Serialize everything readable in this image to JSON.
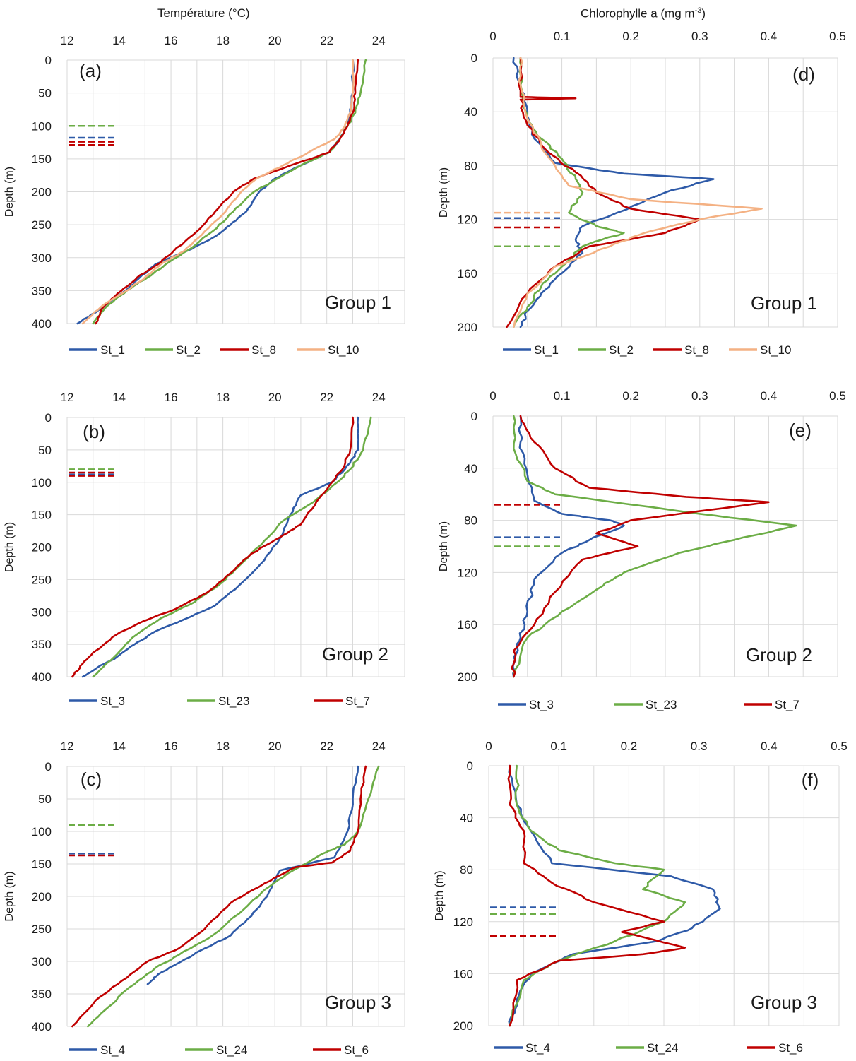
{
  "figure": {
    "temperature_axis_title": "Température (°C)",
    "chlorophyll_axis_title_prefix": "Chlorophylle a (mg m",
    "chlorophyll_axis_title_sup": "-3",
    "chlorophyll_axis_title_suffix": ")",
    "depth_axis_title": "Depth (m)"
  },
  "colors": {
    "blue": "#2e5aa8",
    "green": "#6cad46",
    "red": "#c00000",
    "orange": "#f4b183",
    "grid": "#d9d9d9",
    "axis_text": "#1a1a1a"
  },
  "chart_data": [
    {
      "id": "a",
      "type": "line",
      "panel_label": "(a)",
      "group_label": "Group 1",
      "xlabel": "Température (°C)",
      "ylabel": "Depth (m)",
      "xlim": [
        12,
        25
      ],
      "ylim": [
        400,
        0
      ],
      "y_inverted": true,
      "xticks": [
        12,
        14,
        16,
        18,
        20,
        22,
        24
      ],
      "yticks": [
        0,
        50,
        100,
        150,
        200,
        250,
        300,
        350,
        400
      ],
      "grid": true,
      "legend_position": "bottom",
      "series": [
        {
          "name": "St_1",
          "color": "#2e5aa8",
          "x": [
            23.0,
            23.0,
            22.9,
            22.8,
            22.5,
            22.1,
            21.0,
            20.0,
            19.4,
            18.9,
            18.3,
            17.6,
            16.6,
            15.4,
            14.8,
            14.4,
            13.2,
            12.4
          ],
          "y": [
            0,
            50,
            80,
            100,
            120,
            140,
            160,
            180,
            200,
            230,
            250,
            270,
            290,
            310,
            330,
            345,
            380,
            400
          ]
        },
        {
          "name": "St_2",
          "color": "#6cad46",
          "x": [
            23.5,
            23.3,
            23.1,
            22.8,
            22.5,
            22.1,
            21.0,
            20.1,
            19.2,
            18.4,
            17.6,
            16.6,
            15.8,
            15.1,
            14.3,
            13.5,
            13.0
          ],
          "y": [
            0,
            50,
            80,
            100,
            120,
            140,
            160,
            180,
            200,
            230,
            260,
            290,
            310,
            330,
            350,
            375,
            400
          ]
        },
        {
          "name": "St_8",
          "color": "#c00000",
          "x": [
            23.2,
            23.1,
            23.0,
            22.8,
            22.5,
            22.1,
            20.6,
            19.2,
            18.4,
            17.7,
            17.0,
            16.1,
            15.5,
            14.7,
            14.1,
            13.4,
            13.1
          ],
          "y": [
            0,
            50,
            80,
            100,
            120,
            140,
            160,
            180,
            200,
            230,
            260,
            290,
            310,
            330,
            350,
            375,
            400
          ]
        },
        {
          "name": "St_10",
          "color": "#f4b183",
          "x": [
            23.0,
            23.0,
            22.9,
            22.7,
            22.3,
            21.3,
            20.3,
            19.3,
            18.7,
            18.1,
            17.3,
            16.5,
            15.6,
            15.0,
            14.3,
            13.3,
            12.6
          ],
          "y": [
            0,
            50,
            80,
            100,
            120,
            140,
            160,
            180,
            200,
            230,
            260,
            290,
            310,
            330,
            350,
            375,
            400
          ]
        }
      ],
      "markers": [
        {
          "series": "St_2",
          "value": 100
        },
        {
          "series": "St_1",
          "value": 118
        },
        {
          "series": "St_8",
          "value": 124
        },
        {
          "series": "St_8",
          "value": 129
        }
      ]
    },
    {
      "id": "d",
      "type": "line",
      "panel_label": "(d)",
      "group_label": "Group 1",
      "xlabel": "Chlorophylle a (mg m-3)",
      "ylabel": "Depth (m)",
      "xlim": [
        0,
        0.5
      ],
      "ylim": [
        200,
        0
      ],
      "y_inverted": true,
      "xticks": [
        0,
        0.1,
        0.2,
        0.3,
        0.4,
        0.5
      ],
      "yticks": [
        0,
        40,
        80,
        120,
        160,
        200
      ],
      "grid": true,
      "legend_position": "bottom",
      "series": [
        {
          "name": "St_1",
          "color": "#2e5aa8",
          "x": [
            0.03,
            0.04,
            0.05,
            0.06,
            0.09,
            0.19,
            0.32,
            0.25,
            0.18,
            0.13,
            0.12,
            0.13,
            0.1,
            0.07,
            0.05,
            0.04
          ],
          "y": [
            0,
            20,
            40,
            60,
            78,
            86,
            90,
            100,
            115,
            125,
            135,
            145,
            160,
            175,
            188,
            200
          ]
        },
        {
          "name": "St_2",
          "color": "#6cad46",
          "x": [
            0.04,
            0.04,
            0.05,
            0.07,
            0.1,
            0.12,
            0.13,
            0.11,
            0.15,
            0.19,
            0.13,
            0.1,
            0.07,
            0.05,
            0.03
          ],
          "y": [
            0,
            20,
            45,
            60,
            75,
            90,
            100,
            115,
            125,
            130,
            140,
            155,
            170,
            185,
            200
          ]
        },
        {
          "name": "St_8",
          "color": "#c00000",
          "x": [
            0.04,
            0.04,
            0.12,
            0.04,
            0.05,
            0.08,
            0.12,
            0.15,
            0.2,
            0.3,
            0.25,
            0.14,
            0.09,
            0.05,
            0.02
          ],
          "y": [
            0,
            29,
            30,
            31,
            50,
            70,
            85,
            100,
            112,
            120,
            130,
            140,
            155,
            175,
            200
          ]
        },
        {
          "name": "St_10",
          "color": "#f4b183",
          "x": [
            0.04,
            0.04,
            0.05,
            0.07,
            0.09,
            0.11,
            0.2,
            0.39,
            0.3,
            0.22,
            0.17,
            0.09,
            0.05,
            0.03
          ],
          "y": [
            0,
            20,
            45,
            65,
            80,
            95,
            105,
            112,
            120,
            130,
            140,
            155,
            175,
            200
          ]
        }
      ],
      "markers": [
        {
          "series": "St_10",
          "value": 115
        },
        {
          "series": "St_1",
          "value": 119
        },
        {
          "series": "St_8",
          "value": 126
        },
        {
          "series": "St_2",
          "value": 140
        }
      ]
    },
    {
      "id": "b",
      "type": "line",
      "panel_label": "(b)",
      "group_label": "Group 2",
      "xlabel": "Température (°C)",
      "ylabel": "Depth (m)",
      "xlim": [
        12,
        25
      ],
      "ylim": [
        400,
        0
      ],
      "y_inverted": true,
      "xticks": [
        12,
        14,
        16,
        18,
        20,
        22,
        24
      ],
      "yticks": [
        0,
        50,
        100,
        150,
        200,
        250,
        300,
        350,
        400
      ],
      "grid": true,
      "legend_position": "bottom",
      "series": [
        {
          "name": "St_3",
          "color": "#2e5aa8",
          "x": [
            23.2,
            23.2,
            22.9,
            22.2,
            21.0,
            20.6,
            20.3,
            19.6,
            18.6,
            17.7,
            16.6,
            15.4,
            14.6,
            13.9,
            13.2,
            12.6
          ],
          "y": [
            0,
            50,
            70,
            100,
            120,
            150,
            180,
            220,
            260,
            290,
            310,
            330,
            350,
            370,
            385,
            400
          ]
        },
        {
          "name": "St_23",
          "color": "#6cad46",
          "x": [
            23.7,
            23.4,
            22.9,
            22.4,
            21.5,
            20.3,
            19.6,
            18.6,
            17.8,
            16.9,
            15.6,
            14.5,
            13.8,
            13.0
          ],
          "y": [
            0,
            50,
            80,
            100,
            130,
            160,
            190,
            230,
            260,
            285,
            310,
            340,
            370,
            400
          ]
        },
        {
          "name": "St_7",
          "color": "#c00000",
          "x": [
            23.0,
            22.9,
            22.6,
            22.2,
            21.6,
            21.0,
            20.2,
            19.1,
            18.3,
            17.4,
            16.2,
            14.9,
            13.9,
            13.1,
            12.6,
            12.2
          ],
          "y": [
            0,
            50,
            80,
            100,
            130,
            165,
            185,
            210,
            240,
            270,
            295,
            315,
            335,
            360,
            380,
            400
          ]
        }
      ],
      "markers": [
        {
          "series": "St_23",
          "value": 80
        },
        {
          "series": "St_7",
          "value": 85
        },
        {
          "series": "St_3",
          "value": 88
        },
        {
          "series": "St_7",
          "value": 90
        }
      ]
    },
    {
      "id": "e",
      "type": "line",
      "panel_label": "(e)",
      "group_label": "Group 2",
      "xlabel": "Chlorophylle a (mg m-3)",
      "ylabel": "Depth (m)",
      "xlim": [
        0,
        0.5
      ],
      "ylim": [
        200,
        0
      ],
      "y_inverted": true,
      "xticks": [
        0,
        0.1,
        0.2,
        0.3,
        0.4,
        0.5
      ],
      "yticks": [
        0,
        40,
        80,
        120,
        160,
        200
      ],
      "grid": true,
      "legend_position": "bottom",
      "series": [
        {
          "name": "St_3",
          "color": "#2e5aa8",
          "x": [
            0.04,
            0.04,
            0.05,
            0.06,
            0.1,
            0.17,
            0.19,
            0.14,
            0.1,
            0.06,
            0.05,
            0.04,
            0.03,
            0.03
          ],
          "y": [
            0,
            20,
            45,
            65,
            75,
            80,
            84,
            95,
            105,
            125,
            150,
            170,
            185,
            200
          ]
        },
        {
          "name": "St_23",
          "color": "#6cad46",
          "x": [
            0.03,
            0.03,
            0.05,
            0.09,
            0.3,
            0.44,
            0.35,
            0.27,
            0.19,
            0.16,
            0.1,
            0.05,
            0.03
          ],
          "y": [
            0,
            25,
            50,
            60,
            75,
            84,
            95,
            105,
            120,
            130,
            150,
            170,
            200
          ]
        },
        {
          "name": "St_7",
          "color": "#c00000",
          "x": [
            0.04,
            0.06,
            0.09,
            0.14,
            0.28,
            0.4,
            0.2,
            0.15,
            0.21,
            0.13,
            0.09,
            0.06,
            0.03,
            0.03
          ],
          "y": [
            0,
            20,
            40,
            55,
            62,
            66,
            80,
            90,
            100,
            110,
            135,
            160,
            180,
            200
          ]
        }
      ],
      "markers": [
        {
          "series": "St_7",
          "value": 68
        },
        {
          "series": "St_3",
          "value": 93
        },
        {
          "series": "St_23",
          "value": 100
        }
      ]
    },
    {
      "id": "c",
      "type": "line",
      "panel_label": "(c)",
      "group_label": "Group 3",
      "xlabel": "Température (°C)",
      "ylabel": "Depth (m)",
      "xlim": [
        12,
        25
      ],
      "ylim": [
        400,
        0
      ],
      "y_inverted": true,
      "xticks": [
        12,
        14,
        16,
        18,
        20,
        22,
        24
      ],
      "yticks": [
        0,
        50,
        100,
        150,
        200,
        250,
        300,
        350,
        400
      ],
      "grid": true,
      "legend_position": "bottom",
      "series": [
        {
          "name": "St_4",
          "color": "#2e5aa8",
          "x": [
            23.2,
            23.0,
            22.8,
            22.3,
            20.2,
            19.7,
            19.1,
            18.3,
            17.3,
            16.4,
            15.5,
            15.1
          ],
          "y": [
            0,
            50,
            100,
            140,
            160,
            200,
            230,
            260,
            280,
            300,
            320,
            335
          ]
        },
        {
          "name": "St_24",
          "color": "#6cad46",
          "x": [
            24.0,
            23.6,
            23.2,
            22.7,
            21.8,
            20.7,
            19.6,
            18.8,
            17.6,
            16.3,
            15.4,
            14.4,
            13.6,
            12.8
          ],
          "y": [
            0,
            50,
            100,
            120,
            135,
            160,
            190,
            220,
            260,
            290,
            310,
            340,
            370,
            400
          ]
        },
        {
          "name": "St_6",
          "color": "#c00000",
          "x": [
            23.5,
            23.3,
            23.2,
            22.9,
            22.2,
            20.8,
            19.6,
            18.3,
            17.3,
            16.3,
            15.1,
            14.1,
            13.1,
            12.2
          ],
          "y": [
            0,
            50,
            100,
            130,
            148,
            155,
            180,
            210,
            250,
            280,
            300,
            330,
            360,
            400
          ]
        }
      ],
      "markers": [
        {
          "series": "St_24",
          "value": 90
        },
        {
          "series": "St_4",
          "value": 134
        },
        {
          "series": "St_6",
          "value": 137
        }
      ]
    },
    {
      "id": "f",
      "type": "line",
      "panel_label": "(f)",
      "group_label": "Group 3",
      "xlabel": "Chlorophylle a (mg m-3)",
      "ylabel": "Depth (m)",
      "xlim": [
        0,
        0.5
      ],
      "ylim": [
        200,
        0
      ],
      "y_inverted": true,
      "xticks": [
        0,
        0.1,
        0.2,
        0.3,
        0.4,
        0.5
      ],
      "yticks": [
        0,
        40,
        80,
        120,
        160,
        200
      ],
      "grid": true,
      "legend_position": "bottom",
      "series": [
        {
          "name": "St_4",
          "color": "#2e5aa8",
          "x": [
            0.03,
            0.04,
            0.06,
            0.09,
            0.26,
            0.32,
            0.33,
            0.29,
            0.24,
            0.12,
            0.06,
            0.04,
            0.03
          ],
          "y": [
            0,
            30,
            50,
            75,
            85,
            95,
            110,
            125,
            135,
            145,
            160,
            180,
            200
          ]
        },
        {
          "name": "St_24",
          "color": "#6cad46",
          "x": [
            0.04,
            0.04,
            0.06,
            0.1,
            0.18,
            0.25,
            0.22,
            0.28,
            0.25,
            0.18,
            0.1,
            0.05,
            0.03
          ],
          "y": [
            0,
            30,
            50,
            65,
            75,
            80,
            95,
            105,
            120,
            135,
            150,
            165,
            200
          ]
        },
        {
          "name": "St_6",
          "color": "#c00000",
          "x": [
            0.03,
            0.03,
            0.05,
            0.05,
            0.09,
            0.15,
            0.25,
            0.19,
            0.28,
            0.22,
            0.1,
            0.04,
            0.03
          ],
          "y": [
            0,
            30,
            50,
            75,
            90,
            105,
            120,
            128,
            140,
            145,
            150,
            165,
            200
          ]
        }
      ],
      "markers": [
        {
          "series": "St_4",
          "value": 109
        },
        {
          "series": "St_24",
          "value": 114
        },
        {
          "series": "St_6",
          "value": 131
        }
      ]
    }
  ]
}
